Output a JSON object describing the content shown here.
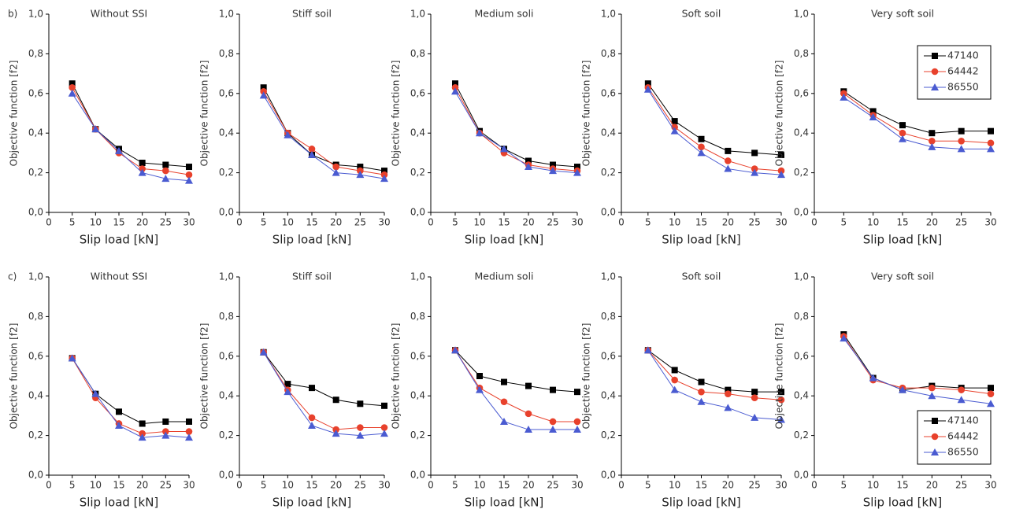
{
  "chart_data": [
    {
      "type": "line",
      "panel_label": "b)",
      "title": "Without SSI",
      "xlabel": "Slip load [kN]",
      "ylabel": "Objective function [f2]",
      "x": [
        5,
        10,
        15,
        20,
        25,
        30
      ],
      "xlim": [
        0,
        30
      ],
      "xticks": [
        0,
        5,
        10,
        15,
        20,
        25,
        30
      ],
      "ylim": [
        0,
        1
      ],
      "yticks": [
        {
          "value": 0,
          "label": "0,0"
        },
        {
          "value": 0.2,
          "label": "0,2"
        },
        {
          "value": 0.4,
          "label": "0,4"
        },
        {
          "value": 0.6,
          "label": "0,6"
        },
        {
          "value": 0.8,
          "label": "0,8"
        },
        {
          "value": 1,
          "label": "1,0"
        }
      ],
      "series": [
        {
          "color": "#000000",
          "values": [
            0.65,
            0.42,
            0.32,
            0.25,
            0.24,
            0.23
          ]
        },
        {
          "color": "#e8412c",
          "values": [
            0.63,
            0.42,
            0.3,
            0.22,
            0.21,
            0.19
          ]
        },
        {
          "color": "#4a5bd1",
          "values": [
            0.6,
            0.42,
            0.31,
            0.2,
            0.17,
            0.16
          ]
        }
      ]
    },
    {
      "type": "line",
      "title": "Stiff soil",
      "xlabel": "Slip load [kN]",
      "ylabel": "Objective function [f2]",
      "x": [
        5,
        10,
        15,
        20,
        25,
        30
      ],
      "xlim": [
        0,
        30
      ],
      "xticks": [
        0,
        5,
        10,
        15,
        20,
        25,
        30
      ],
      "ylim": [
        0,
        1
      ],
      "yticks": [
        {
          "value": 0,
          "label": "0,0"
        },
        {
          "value": 0.2,
          "label": "0,2"
        },
        {
          "value": 0.4,
          "label": "0,4"
        },
        {
          "value": 0.6,
          "label": "0,6"
        },
        {
          "value": 0.8,
          "label": "0,8"
        },
        {
          "value": 1,
          "label": "1,0"
        }
      ],
      "series": [
        {
          "color": "#000000",
          "values": [
            0.63,
            0.4,
            0.29,
            0.24,
            0.23,
            0.21
          ]
        },
        {
          "color": "#e8412c",
          "values": [
            0.61,
            0.4,
            0.32,
            0.23,
            0.21,
            0.19
          ]
        },
        {
          "color": "#4a5bd1",
          "values": [
            0.59,
            0.39,
            0.29,
            0.2,
            0.19,
            0.17
          ]
        }
      ]
    },
    {
      "type": "line",
      "title": "Medium soli",
      "xlabel": "Slip load [kN]",
      "ylabel": "Objective function [f2]",
      "x": [
        5,
        10,
        15,
        20,
        25,
        30
      ],
      "xlim": [
        0,
        30
      ],
      "xticks": [
        0,
        5,
        10,
        15,
        20,
        25,
        30
      ],
      "ylim": [
        0,
        1
      ],
      "yticks": [
        {
          "value": 0,
          "label": "0,0"
        },
        {
          "value": 0.2,
          "label": "0,2"
        },
        {
          "value": 0.4,
          "label": "0,4"
        },
        {
          "value": 0.6,
          "label": "0,6"
        },
        {
          "value": 0.8,
          "label": "0,8"
        },
        {
          "value": 1,
          "label": "1,0"
        }
      ],
      "series": [
        {
          "color": "#000000",
          "values": [
            0.65,
            0.41,
            0.32,
            0.26,
            0.24,
            0.23
          ]
        },
        {
          "color": "#e8412c",
          "values": [
            0.63,
            0.4,
            0.3,
            0.24,
            0.22,
            0.21
          ]
        },
        {
          "color": "#4a5bd1",
          "values": [
            0.61,
            0.4,
            0.32,
            0.23,
            0.21,
            0.2
          ]
        }
      ]
    },
    {
      "type": "line",
      "title": "Soft  soil",
      "xlabel": "Slip load [kN]",
      "ylabel": "Objective function [f2]",
      "x": [
        5,
        10,
        15,
        20,
        25,
        30
      ],
      "xlim": [
        0,
        30
      ],
      "xticks": [
        0,
        5,
        10,
        15,
        20,
        25,
        30
      ],
      "ylim": [
        0,
        1
      ],
      "yticks": [
        {
          "value": 0,
          "label": "0,0"
        },
        {
          "value": 0.2,
          "label": "0,2"
        },
        {
          "value": 0.4,
          "label": "0,4"
        },
        {
          "value": 0.6,
          "label": "0,6"
        },
        {
          "value": 0.8,
          "label": "0,8"
        },
        {
          "value": 1,
          "label": "1,0"
        }
      ],
      "series": [
        {
          "color": "#000000",
          "values": [
            0.65,
            0.46,
            0.37,
            0.31,
            0.3,
            0.29
          ]
        },
        {
          "color": "#e8412c",
          "values": [
            0.63,
            0.43,
            0.33,
            0.26,
            0.22,
            0.21
          ]
        },
        {
          "color": "#4a5bd1",
          "values": [
            0.62,
            0.41,
            0.3,
            0.22,
            0.2,
            0.19
          ]
        }
      ]
    },
    {
      "type": "line",
      "title": "Very soft soil",
      "xlabel": "Slip load [kN]",
      "ylabel": "Objective function [f2]",
      "legend": "upper right",
      "x": [
        5,
        10,
        15,
        20,
        25,
        30
      ],
      "xlim": [
        0,
        30
      ],
      "xticks": [
        0,
        5,
        10,
        15,
        20,
        25,
        30
      ],
      "ylim": [
        0,
        1
      ],
      "yticks": [
        {
          "value": 0,
          "label": "0,0"
        },
        {
          "value": 0.2,
          "label": "0,2"
        },
        {
          "value": 0.4,
          "label": "0,4"
        },
        {
          "value": 0.6,
          "label": "0,6"
        },
        {
          "value": 0.8,
          "label": "0,8"
        },
        {
          "value": 1,
          "label": "1,0"
        }
      ],
      "series": [
        {
          "name": "47140",
          "color": "#000000",
          "values": [
            0.61,
            0.51,
            0.44,
            0.4,
            0.41,
            0.41
          ]
        },
        {
          "name": "64442",
          "color": "#e8412c",
          "values": [
            0.6,
            0.49,
            0.4,
            0.36,
            0.36,
            0.35
          ]
        },
        {
          "name": "86550",
          "color": "#4a5bd1",
          "values": [
            0.58,
            0.48,
            0.37,
            0.33,
            0.32,
            0.32
          ]
        }
      ]
    },
    {
      "type": "line",
      "panel_label": "c)",
      "title": "Without SSI",
      "xlabel": "Slip load [kN]",
      "ylabel": "Objective function [f2]",
      "x": [
        5,
        10,
        15,
        20,
        25,
        30
      ],
      "xlim": [
        0,
        30
      ],
      "xticks": [
        0,
        5,
        10,
        15,
        20,
        25,
        30
      ],
      "ylim": [
        0,
        1
      ],
      "yticks": [
        {
          "value": 0,
          "label": "0,0"
        },
        {
          "value": 0.2,
          "label": "0,2"
        },
        {
          "value": 0.4,
          "label": "0,4"
        },
        {
          "value": 0.6,
          "label": "0,6"
        },
        {
          "value": 0.8,
          "label": "0,8"
        },
        {
          "value": 1,
          "label": "1,0"
        }
      ],
      "series": [
        {
          "color": "#000000",
          "values": [
            0.59,
            0.41,
            0.32,
            0.26,
            0.27,
            0.27
          ]
        },
        {
          "color": "#e8412c",
          "values": [
            0.59,
            0.39,
            0.26,
            0.21,
            0.22,
            0.22
          ]
        },
        {
          "color": "#4a5bd1",
          "values": [
            0.59,
            0.41,
            0.25,
            0.19,
            0.2,
            0.19
          ]
        }
      ]
    },
    {
      "type": "line",
      "title": "Stiff soil",
      "xlabel": "Slip load [kN]",
      "ylabel": "Objective function [f2]",
      "x": [
        5,
        10,
        15,
        20,
        25,
        30
      ],
      "xlim": [
        0,
        30
      ],
      "xticks": [
        0,
        5,
        10,
        15,
        20,
        25,
        30
      ],
      "ylim": [
        0,
        1
      ],
      "yticks": [
        {
          "value": 0,
          "label": "0,0"
        },
        {
          "value": 0.2,
          "label": "0,2"
        },
        {
          "value": 0.4,
          "label": "0,4"
        },
        {
          "value": 0.6,
          "label": "0,6"
        },
        {
          "value": 0.8,
          "label": "0,8"
        },
        {
          "value": 1,
          "label": "1,0"
        }
      ],
      "series": [
        {
          "color": "#000000",
          "values": [
            0.62,
            0.46,
            0.44,
            0.38,
            0.36,
            0.35
          ]
        },
        {
          "color": "#e8412c",
          "values": [
            0.62,
            0.43,
            0.29,
            0.23,
            0.24,
            0.24
          ]
        },
        {
          "color": "#4a5bd1",
          "values": [
            0.62,
            0.42,
            0.25,
            0.21,
            0.2,
            0.21
          ]
        }
      ]
    },
    {
      "type": "line",
      "title": "Medium soli",
      "xlabel": "Slip load [kN]",
      "ylabel": "Objective function [f2]",
      "x": [
        5,
        10,
        15,
        20,
        25,
        30
      ],
      "xlim": [
        0,
        30
      ],
      "xticks": [
        0,
        5,
        10,
        15,
        20,
        25,
        30
      ],
      "ylim": [
        0,
        1
      ],
      "yticks": [
        {
          "value": 0,
          "label": "0,0"
        },
        {
          "value": 0.2,
          "label": "0,2"
        },
        {
          "value": 0.4,
          "label": "0,4"
        },
        {
          "value": 0.6,
          "label": "0,6"
        },
        {
          "value": 0.8,
          "label": "0,8"
        },
        {
          "value": 1,
          "label": "1,0"
        }
      ],
      "series": [
        {
          "color": "#000000",
          "values": [
            0.63,
            0.5,
            0.47,
            0.45,
            0.43,
            0.42
          ]
        },
        {
          "color": "#e8412c",
          "values": [
            0.63,
            0.44,
            0.37,
            0.31,
            0.27,
            0.27
          ]
        },
        {
          "color": "#4a5bd1",
          "values": [
            0.63,
            0.43,
            0.27,
            0.23,
            0.23,
            0.23
          ]
        }
      ]
    },
    {
      "type": "line",
      "title": "Soft  soil",
      "xlabel": "Slip load [kN]",
      "ylabel": "Objective function [f2]",
      "x": [
        5,
        10,
        15,
        20,
        25,
        30
      ],
      "xlim": [
        0,
        30
      ],
      "xticks": [
        0,
        5,
        10,
        15,
        20,
        25,
        30
      ],
      "ylim": [
        0,
        1
      ],
      "yticks": [
        {
          "value": 0,
          "label": "0,0"
        },
        {
          "value": 0.2,
          "label": "0,2"
        },
        {
          "value": 0.4,
          "label": "0,4"
        },
        {
          "value": 0.6,
          "label": "0,6"
        },
        {
          "value": 0.8,
          "label": "0,8"
        },
        {
          "value": 1,
          "label": "1,0"
        }
      ],
      "series": [
        {
          "color": "#000000",
          "values": [
            0.63,
            0.53,
            0.47,
            0.43,
            0.42,
            0.42
          ]
        },
        {
          "color": "#e8412c",
          "values": [
            0.63,
            0.48,
            0.42,
            0.41,
            0.39,
            0.38
          ]
        },
        {
          "color": "#4a5bd1",
          "values": [
            0.63,
            0.43,
            0.37,
            0.34,
            0.29,
            0.28
          ]
        }
      ]
    },
    {
      "type": "line",
      "title": "Very soft soil",
      "xlabel": "Slip load [kN]",
      "ylabel": "Objective function [f2]",
      "legend": "lower right",
      "x": [
        5,
        10,
        15,
        20,
        25,
        30
      ],
      "xlim": [
        0,
        30
      ],
      "xticks": [
        0,
        5,
        10,
        15,
        20,
        25,
        30
      ],
      "ylim": [
        0,
        1
      ],
      "yticks": [
        {
          "value": 0,
          "label": "0,0"
        },
        {
          "value": 0.2,
          "label": "0,2"
        },
        {
          "value": 0.4,
          "label": "0,4"
        },
        {
          "value": 0.6,
          "label": "0,6"
        },
        {
          "value": 0.8,
          "label": "0,8"
        },
        {
          "value": 1,
          "label": "1,0"
        }
      ],
      "series": [
        {
          "name": "47140",
          "color": "#000000",
          "values": [
            0.71,
            0.49,
            0.43,
            0.45,
            0.44,
            0.44
          ]
        },
        {
          "name": "64442",
          "color": "#e8412c",
          "values": [
            0.7,
            0.48,
            0.44,
            0.44,
            0.43,
            0.41
          ]
        },
        {
          "name": "86550",
          "color": "#4a5bd1",
          "values": [
            0.69,
            0.49,
            0.43,
            0.4,
            0.38,
            0.36
          ]
        }
      ]
    }
  ]
}
